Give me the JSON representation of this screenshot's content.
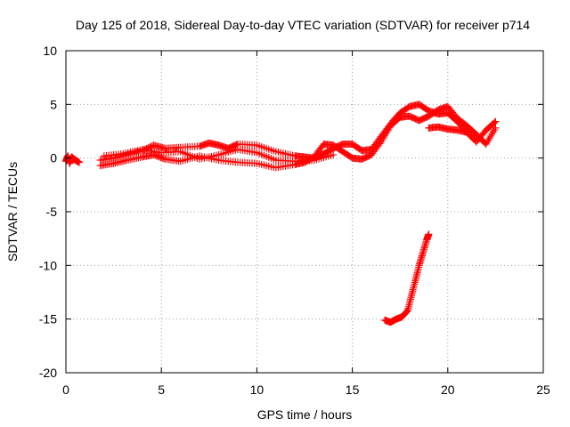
{
  "chart_data": {
    "type": "scatter",
    "title": "Day 125 of 2018, Sidereal Day-to-day VTEC variation (SDTVAR) for receiver p714",
    "xlabel": "GPS time / hours",
    "ylabel": "SDTVAR / TECUs",
    "xlim": [
      0,
      25
    ],
    "ylim": [
      -20,
      10
    ],
    "xticks": [
      0,
      5,
      10,
      15,
      20,
      25
    ],
    "yticks": [
      -20,
      -15,
      -10,
      -5,
      0,
      5,
      10
    ],
    "grid": true,
    "marker": "plus",
    "color": "#ff0000",
    "series": [
      {
        "name": "cluster-a",
        "x": [
          0.0,
          0.1,
          0.2,
          0.3,
          0.5,
          0.7
        ],
        "y": [
          -0.3,
          0.2,
          -0.5,
          0.1,
          -0.2,
          -0.4
        ]
      },
      {
        "name": "track-1",
        "x": [
          1.8,
          2.5,
          3.2,
          4.0,
          4.6,
          5.2,
          6.0,
          7.0,
          7.5,
          8.0,
          8.5,
          9.0,
          10.0,
          11.0,
          12.0,
          12.5,
          13.0,
          13.5,
          14.0,
          14.5,
          15.0,
          15.5,
          16.0,
          16.5,
          17.0,
          17.5,
          18.0,
          18.5,
          19.0,
          19.5,
          20.0,
          20.5,
          21.0,
          21.5,
          22.0,
          22.5
        ],
        "y": [
          -0.2,
          0.0,
          0.3,
          0.7,
          1.2,
          0.9,
          1.0,
          1.1,
          1.4,
          1.2,
          0.9,
          1.3,
          1.2,
          0.6,
          0.2,
          0.1,
          0.0,
          0.4,
          0.9,
          1.3,
          1.3,
          0.7,
          0.8,
          2.0,
          3.2,
          4.2,
          4.8,
          5.0,
          4.4,
          4.1,
          4.2,
          3.4,
          2.4,
          1.5,
          2.6,
          3.4
        ]
      },
      {
        "name": "track-2",
        "x": [
          1.8,
          2.5,
          3.2,
          4.0,
          4.6,
          5.2,
          6.0,
          7.0,
          8.0,
          9.0,
          10.0,
          11.0,
          12.0,
          12.5,
          13.0,
          13.5,
          14.0,
          14.5,
          15.0,
          15.5,
          16.0,
          16.5,
          17.0,
          17.5,
          18.0,
          18.5,
          19.0,
          19.5,
          20.0,
          20.5,
          21.0,
          21.5,
          22.0,
          22.5
        ],
        "y": [
          -0.7,
          -0.5,
          -0.2,
          0.1,
          0.3,
          -0.1,
          -0.3,
          0.2,
          -0.2,
          -0.4,
          -0.5,
          -0.9,
          -0.6,
          -0.4,
          0.1,
          1.3,
          1.2,
          0.6,
          0.0,
          -0.1,
          0.3,
          1.5,
          3.0,
          3.8,
          3.9,
          3.5,
          3.9,
          4.5,
          4.8,
          3.7,
          3.0,
          2.2,
          1.3,
          2.8
        ]
      },
      {
        "name": "track-3",
        "x": [
          2.0,
          3.0,
          4.0,
          5.0,
          6.0,
          7.0,
          8.0,
          9.0,
          10.0,
          11.0,
          12.0,
          13.0,
          14.0
        ],
        "y": [
          0.2,
          0.4,
          0.8,
          0.5,
          0.6,
          -0.1,
          0.3,
          0.8,
          0.5,
          -0.2,
          -0.3,
          -0.2,
          0.3
        ]
      },
      {
        "name": "plateau",
        "x": [
          19.0,
          19.5,
          20.0,
          20.5,
          21.0
        ],
        "y": [
          2.8,
          2.9,
          2.7,
          2.6,
          2.4
        ]
      },
      {
        "name": "drop-track",
        "x": [
          16.7,
          17.0,
          17.3,
          17.6,
          17.9,
          18.1,
          18.3,
          18.5,
          18.7,
          18.9,
          19.0
        ],
        "y": [
          -15.1,
          -15.3,
          -15.0,
          -14.8,
          -14.2,
          -12.8,
          -11.4,
          -10.0,
          -8.8,
          -7.6,
          -7.1
        ]
      }
    ]
  }
}
